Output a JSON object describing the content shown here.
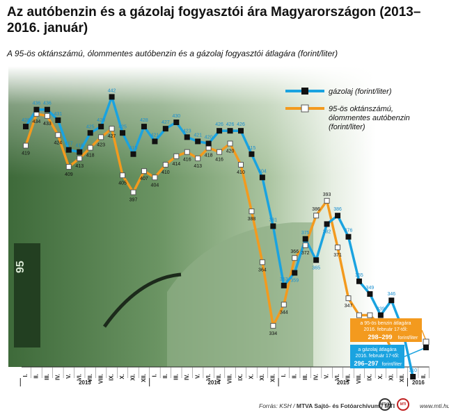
{
  "chart_data": {
    "type": "line",
    "title": "Az autóbenzin és a gázolaj fogyasztói ára Magyarországon (2013–2016. január)",
    "subtitle": "A 95-ös oktánszámú, ólommentes autóbenzin és a gázolaj fogyasztói átlagára (forint/liter)",
    "ylim": [
      300,
      450
    ],
    "grid": false,
    "legend_position": "top-right",
    "months": [
      "I.",
      "II.",
      "III.",
      "IV.",
      "V.",
      "VI.",
      "VII.",
      "VIII.",
      "IX.",
      "X.",
      "XI.",
      "XII.",
      "I.",
      "II.",
      "III.",
      "IV.",
      "V.",
      "VI.",
      "VII.",
      "VIII.",
      "IX.",
      "X.",
      "XI.",
      "XII.",
      "I.",
      "II.",
      "III.",
      "IV.",
      "V.",
      "VI.",
      "VII.",
      "VIII.",
      "IX.",
      "X.",
      "XI.",
      "XII.",
      "I.",
      "II."
    ],
    "years": [
      {
        "label": "2013",
        "start": 0,
        "end": 11
      },
      {
        "label": "2014",
        "start": 12,
        "end": 23
      },
      {
        "label": "2015",
        "start": 24,
        "end": 35
      },
      {
        "label": "2016",
        "start": 36,
        "end": 37
      }
    ],
    "series": [
      {
        "name": "gázolaj (forint/liter)",
        "color": "#1aa3e0",
        "values": [
          428,
          436,
          436,
          431,
          417,
          416,
          425,
          428,
          442,
          425,
          415,
          428,
          421,
          427,
          430,
          423,
          421,
          420,
          426,
          426,
          426,
          415,
          404,
          381,
          353,
          359,
          375,
          365,
          382,
          386,
          376,
          355,
          349,
          339,
          346,
          333,
          310,
          null
        ]
      },
      {
        "name": "95-ös oktánszámú, ólommentes autóbenzin (forint/liter)",
        "color": "#f39a1e",
        "values": [
          419,
          434,
          433,
          424,
          409,
          413,
          418,
          423,
          427,
          405,
          397,
          407,
          404,
          410,
          414,
          416,
          413,
          418,
          416,
          420,
          410,
          388,
          364,
          334,
          344,
          366,
          372,
          386,
          393,
          371,
          347,
          339,
          339,
          334,
          323,
          null,
          null,
          null
        ]
      }
    ],
    "annotations": [
      {
        "target": "benzin",
        "line1": "a 95-ös benzin átlagára",
        "line2": "2016. február 17-től:",
        "value": "298–299",
        "unit": "forint/liter",
        "bg": "#f39a1e"
      },
      {
        "target": "gazolaj",
        "line1": "a gázolaj átlagára",
        "line2": "2016. február 17-től:",
        "value": "296–297",
        "unit": "forint/liter",
        "bg": "#1aa3e0"
      }
    ]
  },
  "legend": {
    "diesel": "gázolaj (forint/liter)",
    "petrol_line1": "95-ös oktánszámú,",
    "petrol_line2": "ólommentes autóbenzin",
    "petrol_line3": "(forint/liter)"
  },
  "footer": {
    "source_prefix": "Forrás: KSH /",
    "source_org": "MTVA Sajtó- és Fotóarchívum / MTI",
    "logo1": "MTVA",
    "logo2": "MTI",
    "site": "www.mti.hu"
  },
  "colors": {
    "diesel": "#1aa3e0",
    "petrol": "#f39a1e",
    "backdrop": "#5b8a55"
  }
}
